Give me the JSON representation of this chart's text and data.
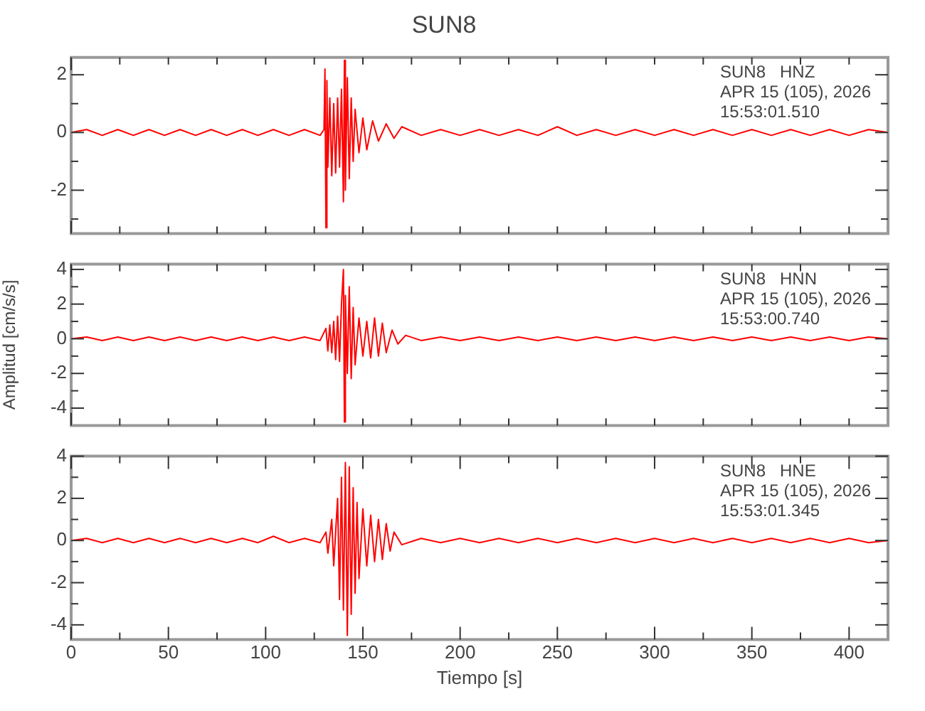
{
  "chart_data": [
    {
      "type": "line",
      "title": "SUN8",
      "marker": "none",
      "tick_labels": "y",
      "annotations": [
        "SUN8   HNZ",
        "APR 15 (105), 2026",
        "15:53:01.510"
      ],
      "xlim": [
        0,
        420
      ],
      "xticks": [
        0,
        {
          "value": 25,
          "label": null
        },
        {
          "value": 50,
          "label": null
        },
        {
          "value": 75,
          "label": null
        },
        {
          "value": 100,
          "label": null
        },
        {
          "value": 125,
          "label": null
        },
        {
          "value": 150,
          "label": null
        },
        {
          "value": 175,
          "label": null
        },
        {
          "value": 200,
          "label": null
        },
        {
          "value": 225,
          "label": null
        },
        {
          "value": 250,
          "label": null
        },
        {
          "value": 275,
          "label": null
        },
        {
          "value": 300,
          "label": null
        },
        {
          "value": 325,
          "label": null
        },
        {
          "value": 350,
          "label": null
        },
        {
          "value": 375,
          "label": null
        },
        {
          "value": 400,
          "label": null
        }
      ],
      "ylim": [
        -3.5,
        2.6
      ],
      "yticks": [
        {
          "value": -3,
          "label": null
        },
        -2,
        {
          "value": -1,
          "label": null
        },
        0,
        {
          "value": 1,
          "label": null
        },
        2
      ],
      "series": [
        {
          "color": "#ff0000",
          "x": [
            0,
            8,
            16,
            24,
            32,
            40,
            48,
            56,
            64,
            72,
            80,
            88,
            96,
            104,
            112,
            120,
            128,
            130,
            130.5,
            131,
            131.5,
            132,
            133,
            134,
            135,
            136,
            137,
            138,
            139,
            140,
            140.5,
            141,
            142,
            143,
            144,
            145,
            146,
            148,
            150,
            152,
            155,
            158,
            162,
            166,
            170,
            180,
            190,
            200,
            210,
            220,
            230,
            240,
            250,
            260,
            270,
            280,
            290,
            300,
            310,
            320,
            330,
            340,
            350,
            360,
            370,
            380,
            390,
            400,
            410,
            420
          ],
          "values": [
            0,
            0.1,
            -0.1,
            0.1,
            -0.1,
            0.1,
            -0.1,
            0.1,
            -0.1,
            0.1,
            -0.1,
            0.1,
            -0.1,
            0.1,
            -0.1,
            0.1,
            -0.1,
            0.1,
            2.2,
            -3.3,
            1.8,
            -1.2,
            1.2,
            -1.5,
            1.0,
            -1.4,
            1.2,
            -1.2,
            1.5,
            -2.4,
            2.5,
            -2.0,
            1.9,
            -1.6,
            1.2,
            -1.0,
            0.8,
            -0.7,
            0.5,
            -0.6,
            0.4,
            -0.3,
            0.3,
            -0.2,
            0.2,
            -0.1,
            0.1,
            -0.1,
            0.1,
            -0.1,
            0.1,
            -0.1,
            0.2,
            -0.1,
            0.1,
            -0.1,
            0.1,
            -0.1,
            0.1,
            -0.1,
            0.1,
            -0.1,
            0.1,
            -0.1,
            0.1,
            -0.1,
            0.1,
            -0.1,
            0.1,
            0
          ]
        }
      ]
    },
    {
      "type": "line",
      "ylabel": "Amplitud [cm/s/s]",
      "marker": "none",
      "tick_labels": "y",
      "annotations": [
        "SUN8   HNN",
        "APR 15 (105), 2026",
        "15:53:00.740"
      ],
      "xlim": [
        0,
        420
      ],
      "xticks": [
        0,
        {
          "value": 25,
          "label": null
        },
        {
          "value": 50,
          "label": null
        },
        {
          "value": 75,
          "label": null
        },
        {
          "value": 100,
          "label": null
        },
        {
          "value": 125,
          "label": null
        },
        {
          "value": 150,
          "label": null
        },
        {
          "value": 175,
          "label": null
        },
        {
          "value": 200,
          "label": null
        },
        {
          "value": 225,
          "label": null
        },
        {
          "value": 250,
          "label": null
        },
        {
          "value": 275,
          "label": null
        },
        {
          "value": 300,
          "label": null
        },
        {
          "value": 325,
          "label": null
        },
        {
          "value": 350,
          "label": null
        },
        {
          "value": 375,
          "label": null
        },
        {
          "value": 400,
          "label": null
        }
      ],
      "ylim": [
        -5.0,
        4.3
      ],
      "yticks": [
        -4,
        {
          "value": -3,
          "label": null
        },
        -2,
        {
          "value": -1,
          "label": null
        },
        0,
        {
          "value": 1,
          "label": null
        },
        2,
        {
          "value": 3,
          "label": null
        },
        4
      ],
      "series": [
        {
          "color": "#ff0000",
          "x": [
            0,
            8,
            16,
            24,
            32,
            40,
            48,
            56,
            64,
            72,
            80,
            88,
            96,
            104,
            112,
            120,
            128,
            131,
            132,
            133,
            134,
            135,
            136,
            137,
            138,
            139,
            140,
            140.5,
            141,
            142,
            143,
            144,
            145,
            146,
            148,
            150,
            152,
            154,
            156,
            158,
            160,
            162,
            165,
            168,
            172,
            180,
            190,
            200,
            210,
            220,
            230,
            240,
            250,
            260,
            270,
            280,
            290,
            300,
            310,
            320,
            330,
            340,
            350,
            360,
            370,
            380,
            390,
            400,
            410,
            420
          ],
          "values": [
            0,
            0.1,
            -0.1,
            0.1,
            -0.1,
            0.1,
            -0.1,
            0.1,
            -0.1,
            0.1,
            -0.1,
            0.1,
            -0.1,
            0.1,
            -0.1,
            0.1,
            -0.1,
            0.6,
            -0.7,
            0.8,
            -0.8,
            1.0,
            -1.2,
            1.3,
            -1.3,
            2.0,
            4.0,
            -4.8,
            2.5,
            -2.0,
            3.0,
            -2.3,
            1.8,
            -1.5,
            1.2,
            -1.0,
            1.0,
            -1.1,
            1.2,
            -1.0,
            0.9,
            -0.8,
            0.5,
            -0.3,
            0.2,
            -0.1,
            0.1,
            -0.1,
            0.1,
            -0.1,
            0.1,
            -0.1,
            0.1,
            -0.1,
            0.1,
            -0.1,
            0.1,
            -0.1,
            0.1,
            -0.1,
            0.1,
            -0.1,
            0.1,
            -0.1,
            0.1,
            -0.1,
            0.1,
            -0.1,
            0.1,
            0
          ]
        }
      ]
    },
    {
      "type": "line",
      "xlabel": "Tiempo [s]",
      "marker": "none",
      "annotations": [
        "SUN8   HNE",
        "APR 15 (105), 2026",
        "15:53:01.345"
      ],
      "xlim": [
        0,
        420
      ],
      "xticks": [
        0,
        {
          "value": 25,
          "label": null
        },
        50,
        {
          "value": 75,
          "label": null
        },
        100,
        {
          "value": 125,
          "label": null
        },
        150,
        {
          "value": 175,
          "label": null
        },
        200,
        {
          "value": 225,
          "label": null
        },
        250,
        {
          "value": 275,
          "label": null
        },
        300,
        {
          "value": 325,
          "label": null
        },
        350,
        {
          "value": 375,
          "label": null
        },
        400
      ],
      "ylim": [
        -4.7,
        4.0
      ],
      "yticks": [
        -4,
        {
          "value": -3,
          "label": null
        },
        -2,
        {
          "value": -1,
          "label": null
        },
        0,
        {
          "value": 1,
          "label": null
        },
        2,
        {
          "value": 3,
          "label": null
        },
        4
      ],
      "series": [
        {
          "color": "#ff0000",
          "x": [
            0,
            8,
            16,
            24,
            32,
            40,
            48,
            56,
            64,
            72,
            80,
            88,
            96,
            104,
            112,
            120,
            128,
            131,
            132,
            134,
            135,
            137,
            138,
            139,
            140,
            141,
            142,
            143,
            144,
            145,
            146,
            147,
            148,
            150,
            152,
            154,
            156,
            158,
            160,
            162,
            164,
            166,
            170,
            180,
            190,
            200,
            210,
            220,
            230,
            240,
            250,
            260,
            270,
            280,
            290,
            300,
            310,
            320,
            330,
            340,
            350,
            360,
            370,
            380,
            390,
            400,
            410,
            420
          ],
          "values": [
            0,
            0.1,
            -0.1,
            0.1,
            -0.1,
            0.1,
            -0.1,
            0.1,
            -0.1,
            0.1,
            -0.1,
            0.1,
            -0.1,
            0.2,
            -0.1,
            0.1,
            -0.1,
            0.4,
            -0.6,
            1.0,
            -1.2,
            2.0,
            -2.8,
            3.0,
            -3.3,
            3.7,
            -4.5,
            3.5,
            -3.5,
            2.5,
            -2.5,
            1.8,
            -1.8,
            1.5,
            -1.2,
            1.2,
            -1.0,
            1.0,
            -0.9,
            0.8,
            -0.5,
            0.4,
            -0.2,
            0.1,
            -0.1,
            0.1,
            -0.1,
            0.1,
            -0.1,
            0.1,
            -0.1,
            0.1,
            -0.1,
            0.1,
            -0.1,
            0.1,
            -0.1,
            0.1,
            -0.1,
            0.1,
            -0.1,
            0.1,
            -0.1,
            0.1,
            -0.1,
            0.1,
            -0.1,
            0
          ]
        }
      ]
    }
  ]
}
